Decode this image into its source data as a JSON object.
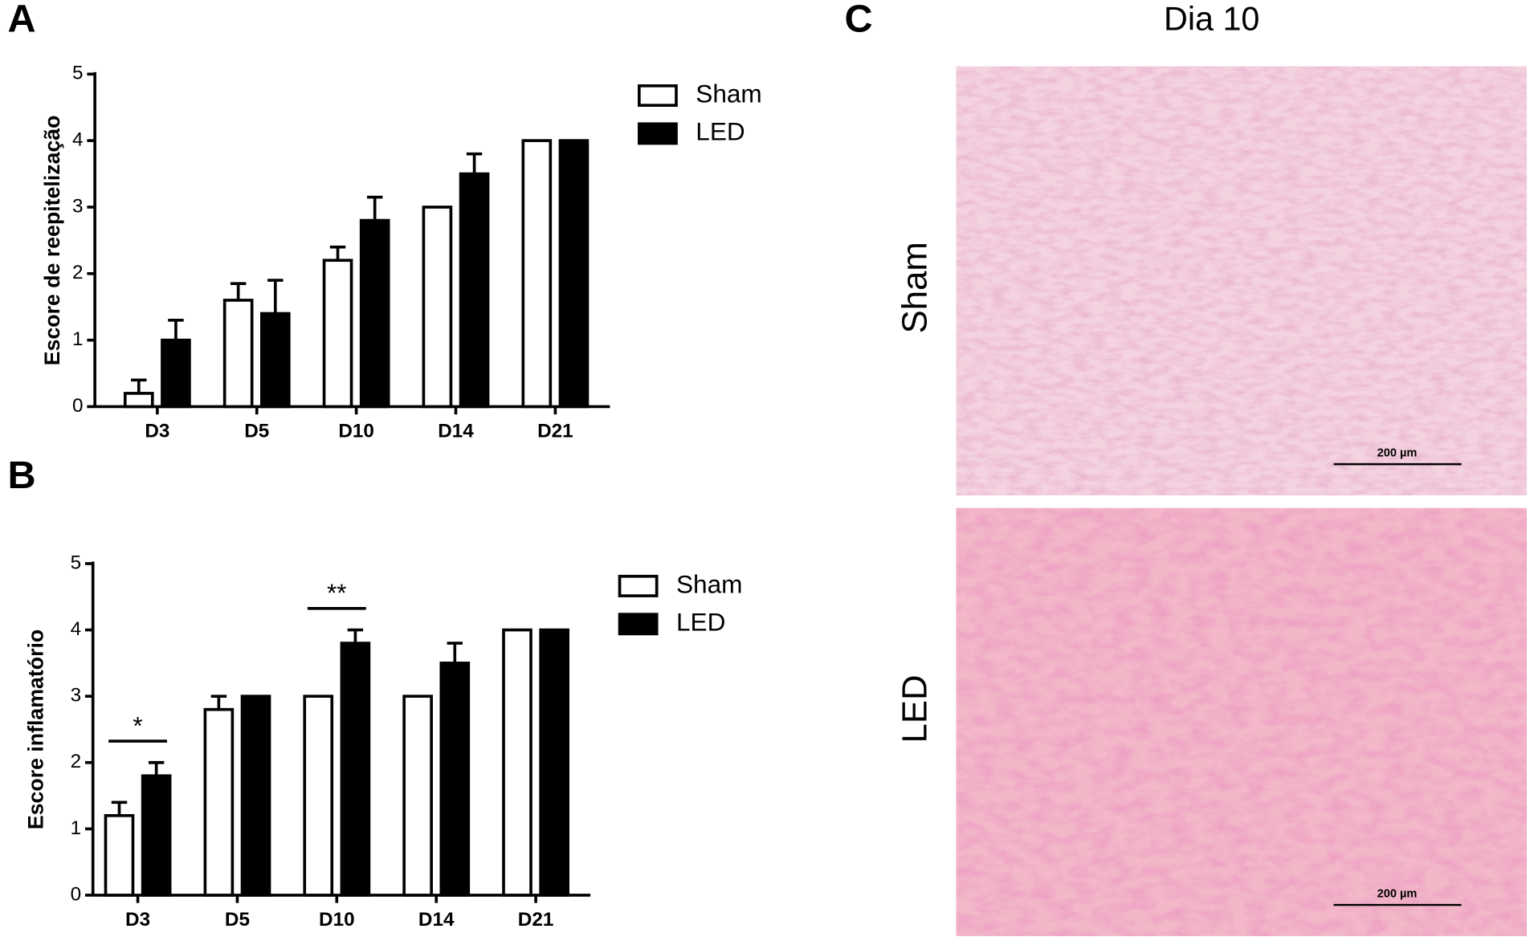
{
  "panel_labels": [
    "A",
    "B",
    "C"
  ],
  "chart_data": [
    {
      "type": "bar",
      "y_label": "Escore de reepitelização",
      "categories": [
        "D3",
        "D5",
        "D10",
        "D14",
        "D21"
      ],
      "series": [
        {
          "name": "Sham",
          "color": "#ffffff",
          "values": [
            0.2,
            1.6,
            2.2,
            3,
            4
          ],
          "errors": [
            0.2,
            0.25,
            0.2,
            0,
            0
          ]
        },
        {
          "name": "LED",
          "color": "#000000",
          "values": [
            1,
            1.4,
            2.8,
            3.5,
            4
          ],
          "errors": [
            0.3,
            0.5,
            0.35,
            0.3,
            0
          ]
        }
      ],
      "ylim": [
        0,
        5
      ],
      "yticks": [
        0,
        1,
        2,
        3,
        4,
        5
      ]
    },
    {
      "type": "bar",
      "y_label": "Escore inflamatório",
      "categories": [
        "D3",
        "D5",
        "D10",
        "D14",
        "D21"
      ],
      "series": [
        {
          "name": "Sham",
          "color": "#ffffff",
          "values": [
            1.2,
            2.8,
            3,
            3,
            4
          ],
          "errors": [
            0.2,
            0.2,
            0,
            0,
            0
          ]
        },
        {
          "name": "LED",
          "color": "#000000",
          "values": [
            1.8,
            3,
            3.8,
            3.5,
            4
          ],
          "errors": [
            0.2,
            0,
            0.2,
            0.3,
            0
          ]
        }
      ],
      "annotations": [
        {
          "label": "*",
          "category": "D3"
        },
        {
          "label": "**",
          "category": "D10"
        }
      ],
      "ylim": [
        0,
        5
      ],
      "yticks": [
        0,
        1,
        2,
        3,
        4,
        5
      ]
    }
  ],
  "micrographs": {
    "title": "Dia 10",
    "rows": [
      "Sham",
      "LED"
    ],
    "scale_bar": "200 µm"
  }
}
